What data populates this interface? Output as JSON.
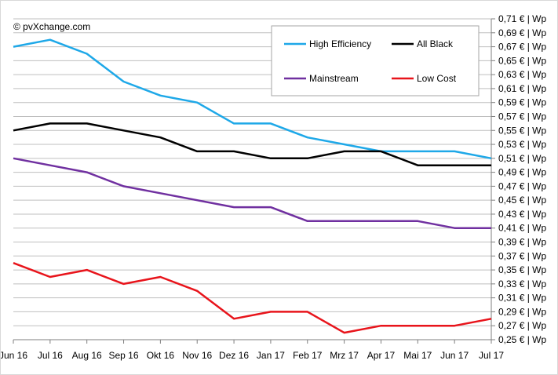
{
  "chart_data": {
    "type": "line",
    "source": "© pvXchange.com",
    "categories": [
      "Jun 16",
      "Jul 16",
      "Aug 16",
      "Sep 16",
      "Okt 16",
      "Nov 16",
      "Dez 16",
      "Jan 17",
      "Feb 17",
      "Mrz 17",
      "Apr 17",
      "Mai 17",
      "Jun 17",
      "Jul 17"
    ],
    "ylim": [
      0.25,
      0.71
    ],
    "ytick_step": 0.02,
    "ytick_labels": [
      "0,25 € | Wp",
      "0,27 € | Wp",
      "0,29 € | Wp",
      "0,31 € | Wp",
      "0,33 € | Wp",
      "0,35 € | Wp",
      "0,37 € | Wp",
      "0,39 € | Wp",
      "0,41 € | Wp",
      "0,43 € | Wp",
      "0,45 € | Wp",
      "0,47 € | Wp",
      "0,49 € | Wp",
      "0,51 € | Wp",
      "0,53 € | Wp",
      "0,55 € | Wp",
      "0,57 € | Wp",
      "0,59 € | Wp",
      "0,61 € | Wp",
      "0,63 € | Wp",
      "0,65 € | Wp",
      "0,67 € | Wp",
      "0,69 € | Wp",
      "0,71 € | Wp"
    ],
    "grid": true,
    "legend_position": "top-right",
    "series": [
      {
        "name": "High Efficiency",
        "color": "#1ea8e8",
        "values": [
          0.67,
          0.68,
          0.66,
          0.62,
          0.6,
          0.59,
          0.56,
          0.56,
          0.54,
          0.53,
          0.52,
          0.52,
          0.52,
          0.51
        ]
      },
      {
        "name": "All Black",
        "color": "#000000",
        "values": [
          0.55,
          0.56,
          0.56,
          0.55,
          0.54,
          0.52,
          0.52,
          0.51,
          0.51,
          0.52,
          0.52,
          0.5,
          0.5,
          0.5
        ]
      },
      {
        "name": "Mainstream",
        "color": "#7030a0",
        "values": [
          0.51,
          0.5,
          0.49,
          0.47,
          0.46,
          0.45,
          0.44,
          0.44,
          0.42,
          0.42,
          0.42,
          0.42,
          0.41,
          0.41
        ]
      },
      {
        "name": "Low Cost",
        "color": "#e8141b",
        "values": [
          0.36,
          0.34,
          0.35,
          0.33,
          0.34,
          0.32,
          0.28,
          0.29,
          0.29,
          0.26,
          0.27,
          0.27,
          0.27,
          0.28
        ]
      }
    ]
  }
}
